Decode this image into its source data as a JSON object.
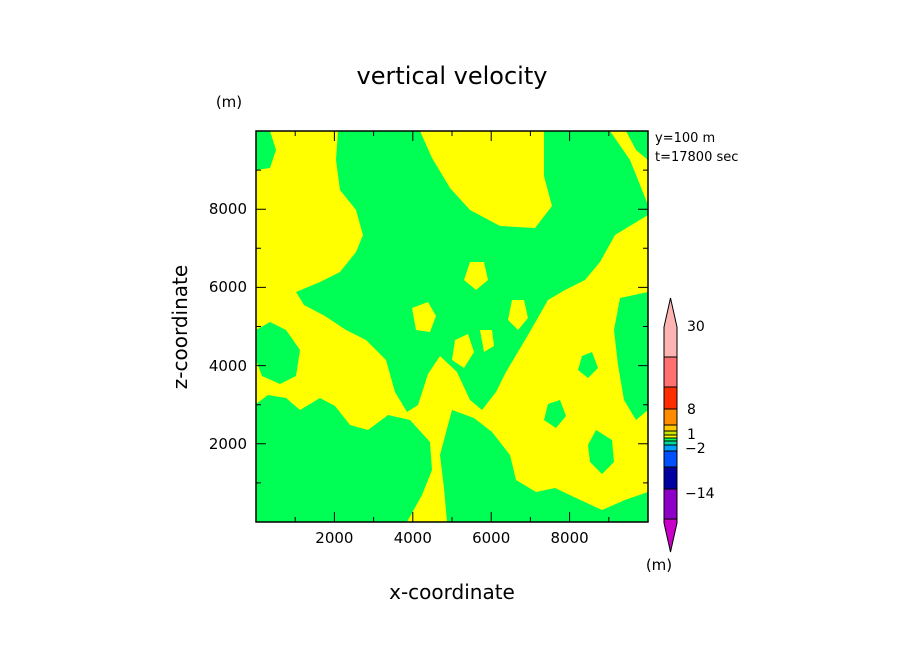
{
  "chart_data": {
    "type": "heatmap",
    "title": "vertical velocity",
    "xlabel": "x-coordinate",
    "ylabel": "z-coordinate",
    "x_unit": "(m)",
    "y_unit": "(m)",
    "annotations": [
      "y=100 m",
      "t=17800 sec"
    ],
    "xlim": [
      0,
      10000
    ],
    "ylim": [
      0,
      10000
    ],
    "x_ticks": [
      2000,
      4000,
      6000,
      8000
    ],
    "y_ticks": [
      2000,
      4000,
      6000,
      8000
    ],
    "x_tick_labels": [
      "2000",
      "4000",
      "6000",
      "8000"
    ],
    "y_tick_labels": [
      "2000",
      "4000",
      "6000",
      "8000"
    ],
    "colorbar": {
      "unit": "(m)",
      "tick_labels": [
        "30",
        "8",
        "1",
        "−2",
        "−14"
      ],
      "levels": [
        -30,
        -14,
        -8,
        -4,
        -2,
        -1,
        -0.5,
        0,
        0.5,
        1,
        2,
        4,
        8,
        14,
        30
      ],
      "colors": [
        "#c800c8",
        "#8c00c8",
        "#0000a0",
        "#0050ff",
        "#00a0ff",
        "#00d8a0",
        "#00ff55",
        "#ffff00",
        "#c8e600",
        "#ffc800",
        "#ff8c00",
        "#ff2d00",
        "#ff7070",
        "#ffb4b4"
      ]
    },
    "field_values": {
      "dominant": [
        "0 to 0.5",
        "-0.5 to 0"
      ],
      "colors": {
        "positive_small": "#ffff00",
        "negative_small": "#00ff55"
      }
    }
  }
}
